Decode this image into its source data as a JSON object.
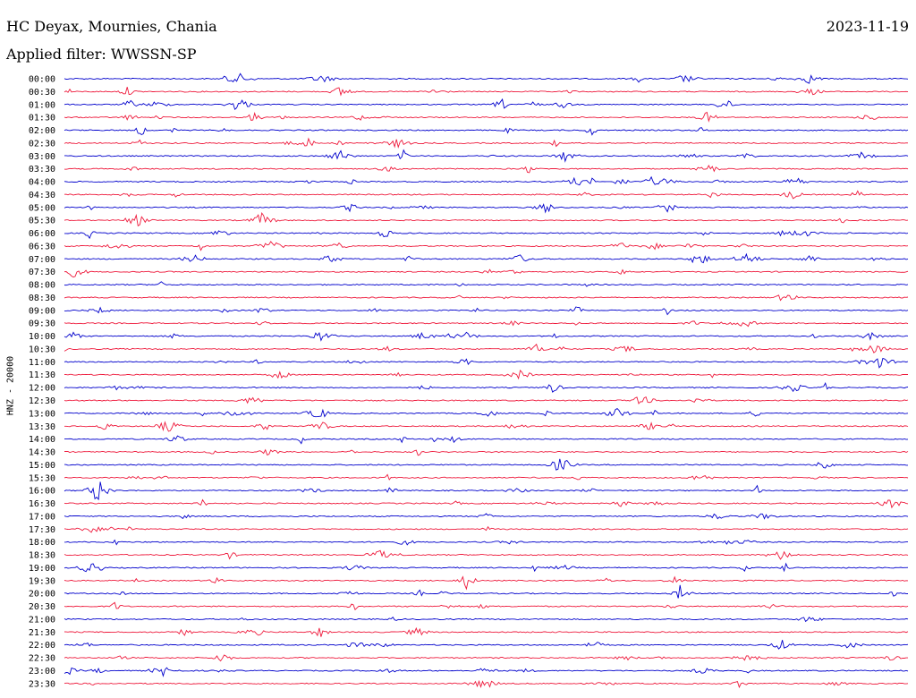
{
  "header": {
    "station": "HC Deyax, Mournies, Chania",
    "date": "2023-11-19",
    "filter": "Applied filter: WWSSN-SP"
  },
  "chart_data": {
    "type": "line",
    "title": "HC Deyax, Mournies, Chania",
    "ylabel": "HNZ - 20000",
    "colors": [
      "#0000cc",
      "#ee1a3c"
    ],
    "rows": [
      "00:00",
      "00:30",
      "01:00",
      "01:30",
      "02:00",
      "02:30",
      "03:00",
      "03:30",
      "04:00",
      "04:30",
      "05:00",
      "05:30",
      "06:00",
      "06:30",
      "07:00",
      "07:30",
      "08:00",
      "08:30",
      "09:00",
      "09:30",
      "10:00",
      "10:30",
      "11:00",
      "11:30",
      "12:00",
      "12:30",
      "13:00",
      "13:30",
      "14:00",
      "14:30",
      "15:00",
      "15:30",
      "16:00",
      "16:30",
      "17:00",
      "17:30",
      "18:00",
      "18:30",
      "19:00",
      "19:30",
      "20:00",
      "20:30",
      "21:00",
      "21:30",
      "22:00",
      "22:30",
      "23:00",
      "23:30"
    ]
  }
}
